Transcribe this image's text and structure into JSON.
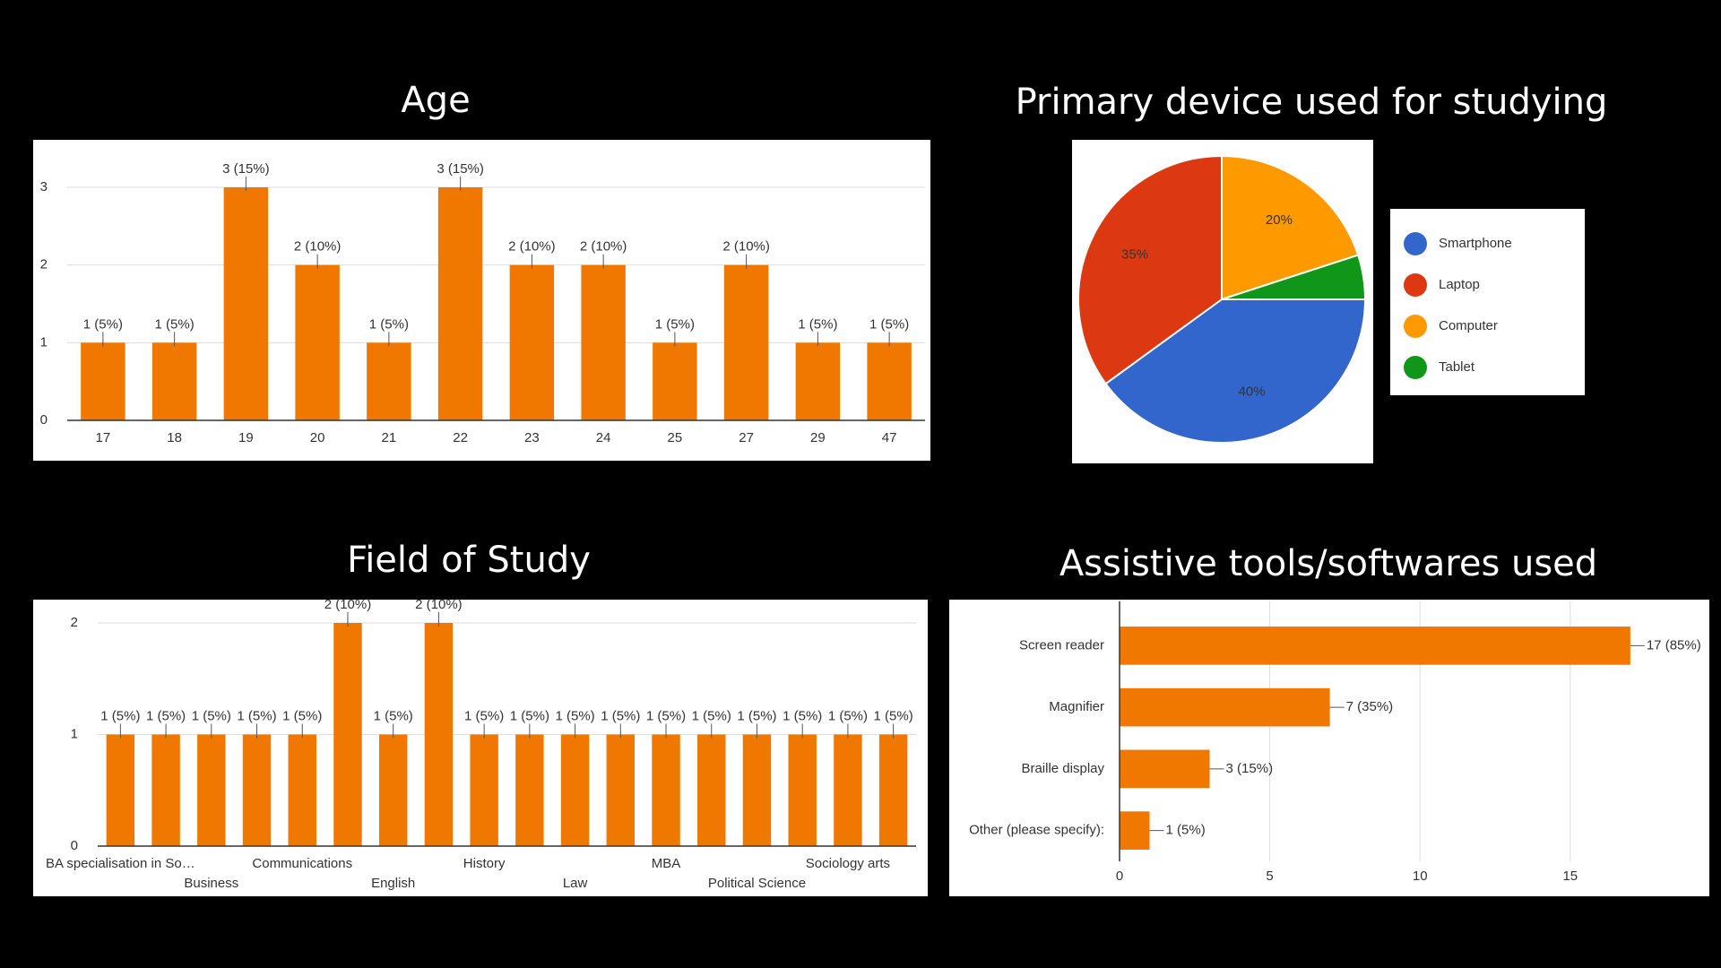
{
  "chart_data": [
    {
      "type": "bar",
      "title": "Age",
      "categories": [
        "17",
        "18",
        "19",
        "20",
        "21",
        "22",
        "23",
        "24",
        "25",
        "27",
        "29",
        "47"
      ],
      "values": [
        1,
        1,
        3,
        2,
        1,
        3,
        2,
        2,
        1,
        2,
        1,
        1
      ],
      "value_labels": [
        "1 (5%)",
        "1 (5%)",
        "3 (15%)",
        "2 (10%)",
        "1 (5%)",
        "3 (15%)",
        "2 (10%)",
        "2 (10%)",
        "1 (5%)",
        "2 (10%)",
        "1 (5%)",
        "1 (5%)"
      ],
      "color": "#f07800",
      "ylim": [
        0,
        3
      ],
      "yticks": [
        0,
        1,
        2,
        3
      ],
      "grid": true
    },
    {
      "type": "pie",
      "title": "Primary device used for studying",
      "categories": [
        "Smartphone",
        "Laptop",
        "Computer",
        "Tablet"
      ],
      "values": [
        40,
        35,
        20,
        5
      ],
      "value_labels": [
        "40%",
        "35%",
        "20%",
        null
      ],
      "colors": [
        "#3366cc",
        "#dc3912",
        "#ff9900",
        "#109618"
      ],
      "legend": "right"
    },
    {
      "type": "bar",
      "title": "Field of Study",
      "categories": [
        "BA specialisation in So…",
        null,
        "Business",
        null,
        "Communications",
        null,
        "English",
        null,
        "History",
        null,
        "Law",
        null,
        "MBA",
        null,
        "Political Science",
        null,
        "Sociology arts",
        null
      ],
      "values": [
        1,
        1,
        1,
        1,
        1,
        2,
        1,
        2,
        1,
        1,
        1,
        1,
        1,
        1,
        1,
        1,
        1,
        1
      ],
      "value_labels": [
        "1 (5%)",
        "1 (5%)",
        "1 (5%)",
        "1 (5%)",
        "1 (5%)",
        "2 (10%)",
        "1 (5%)",
        "2 (10%)",
        "1 (5%)",
        "1 (5%)",
        "1 (5%)",
        "1 (5%)",
        "1 (5%)",
        "1 (5%)",
        "1 (5%)",
        "1 (5%)",
        "1 (5%)",
        "1 (5%)"
      ],
      "color": "#f07800",
      "ylim": [
        0,
        2
      ],
      "yticks": [
        0,
        1,
        2
      ],
      "grid": true
    },
    {
      "type": "hbar",
      "title": "Assistive tools/softwares used",
      "categories": [
        "Screen reader",
        "Magnifier",
        "Braille display",
        "Other (please specify):"
      ],
      "values": [
        17,
        7,
        3,
        1
      ],
      "value_labels": [
        "17 (85%)",
        "7 (35%)",
        "3 (15%)",
        "1 (5%)"
      ],
      "color": "#f07800",
      "xlim": [
        0,
        19.6
      ],
      "xticks": [
        0,
        5,
        10,
        15
      ],
      "grid": true
    }
  ]
}
